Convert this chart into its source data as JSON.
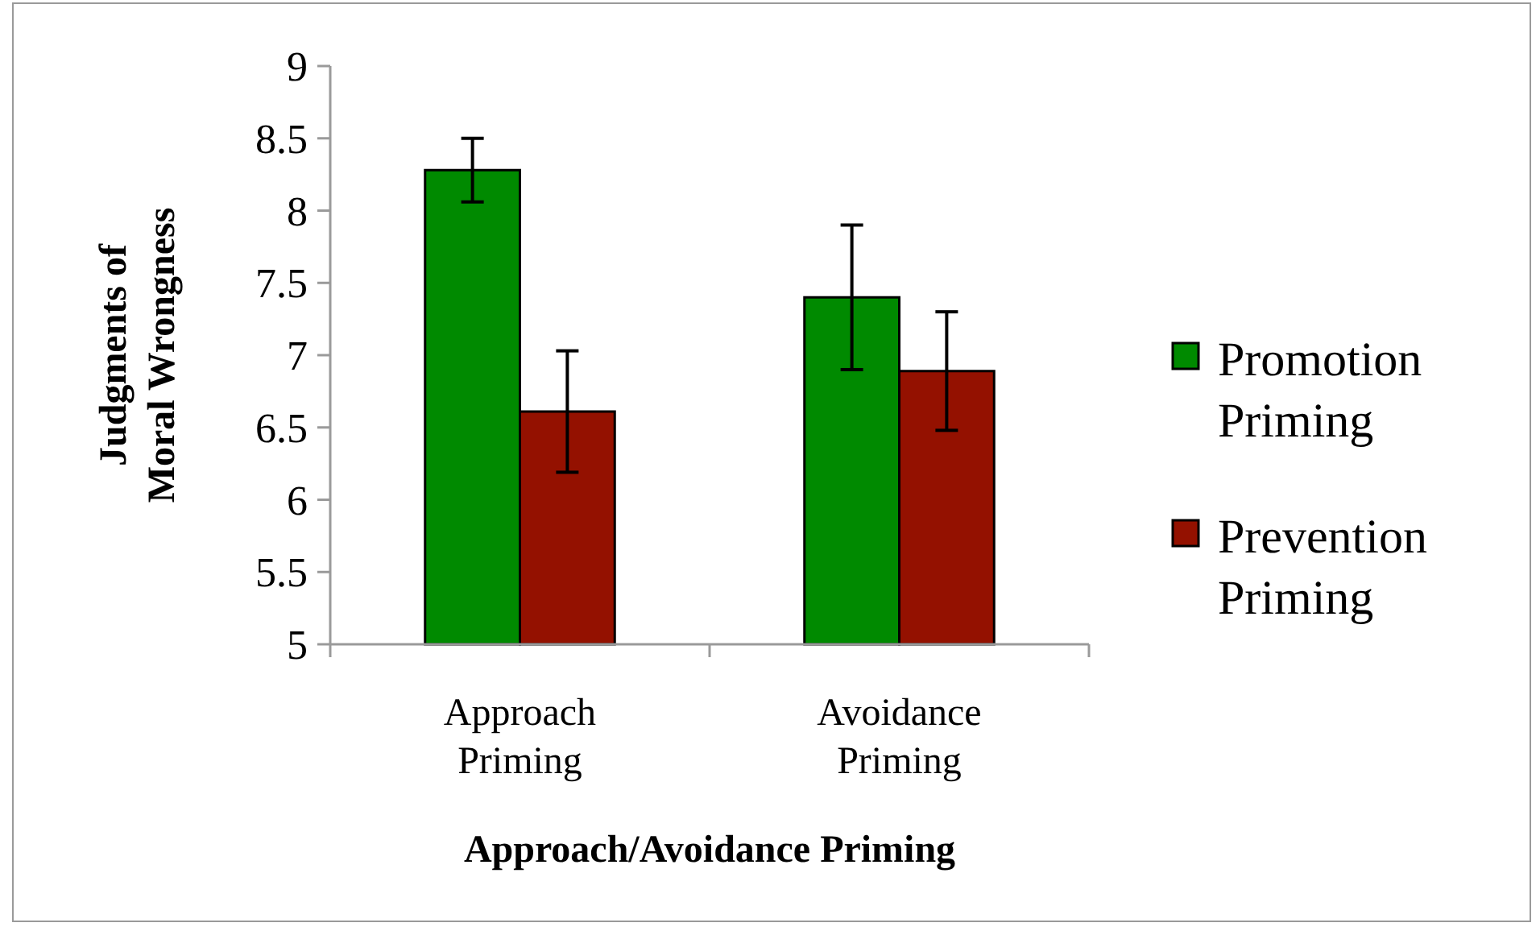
{
  "chart_data": {
    "type": "bar",
    "xlabel": "Approach/Avoidance Priming",
    "ylabel": "Judgments of Moral Wrongness",
    "categories": [
      "Approach Priming",
      "Avoidance Priming"
    ],
    "series": [
      {
        "name": "Promotion Priming",
        "color": "#008a00",
        "values": [
          8.28,
          7.4
        ],
        "errors": [
          0.22,
          0.5
        ]
      },
      {
        "name": "Prevention Priming",
        "color": "#941100",
        "values": [
          6.61,
          6.89
        ],
        "errors": [
          0.42,
          0.41
        ]
      }
    ],
    "ylim": [
      5,
      9
    ],
    "yticks": [
      5,
      5.5,
      6,
      6.5,
      7,
      7.5,
      8,
      8.5,
      9
    ],
    "grid": false,
    "legend": "right"
  }
}
